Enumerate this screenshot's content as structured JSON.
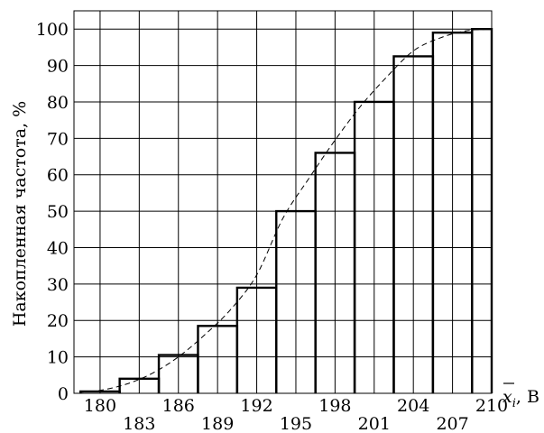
{
  "chart_data": {
    "type": "bar",
    "chart_kind": "cumulative histogram with dashed smoothed curve",
    "ylabel": "Накопленная частота, %",
    "xlabel_var": "x",
    "xlabel_sub": "i",
    "xlabel_unit": ", В",
    "xlim": [
      178,
      210
    ],
    "ylim": [
      0,
      105
    ],
    "grid": true,
    "x_ticks_upper": [
      180,
      186,
      192,
      198,
      204,
      210
    ],
    "x_ticks_lower": [
      183,
      189,
      195,
      201,
      207
    ],
    "y_ticks": [
      0,
      10,
      20,
      30,
      40,
      50,
      60,
      70,
      80,
      90,
      100
    ],
    "bars": [
      {
        "x0": 178.5,
        "x1": 181.5,
        "value": 0.5
      },
      {
        "x0": 181.5,
        "x1": 184.5,
        "value": 4
      },
      {
        "x0": 184.5,
        "x1": 187.5,
        "value": 10.5
      },
      {
        "x0": 187.5,
        "x1": 190.5,
        "value": 18.5
      },
      {
        "x0": 190.5,
        "x1": 193.5,
        "value": 29
      },
      {
        "x0": 193.5,
        "x1": 196.5,
        "value": 50
      },
      {
        "x0": 196.5,
        "x1": 199.5,
        "value": 66
      },
      {
        "x0": 199.5,
        "x1": 202.5,
        "value": 80
      },
      {
        "x0": 202.5,
        "x1": 205.5,
        "value": 92.5
      },
      {
        "x0": 205.5,
        "x1": 208.5,
        "value": 99
      },
      {
        "x0": 208.5,
        "x1": 211.5,
        "value": 100
      }
    ],
    "curve": {
      "x": [
        178.5,
        180,
        182,
        184,
        186,
        188,
        190,
        192,
        194,
        196,
        198,
        200,
        202,
        204,
        206,
        208,
        210
      ],
      "y": [
        0.3,
        0.8,
        2.5,
        5.5,
        10,
        16,
        23,
        32.5,
        48,
        59,
        69.5,
        79,
        87,
        94,
        97.5,
        99.5,
        100
      ]
    }
  }
}
